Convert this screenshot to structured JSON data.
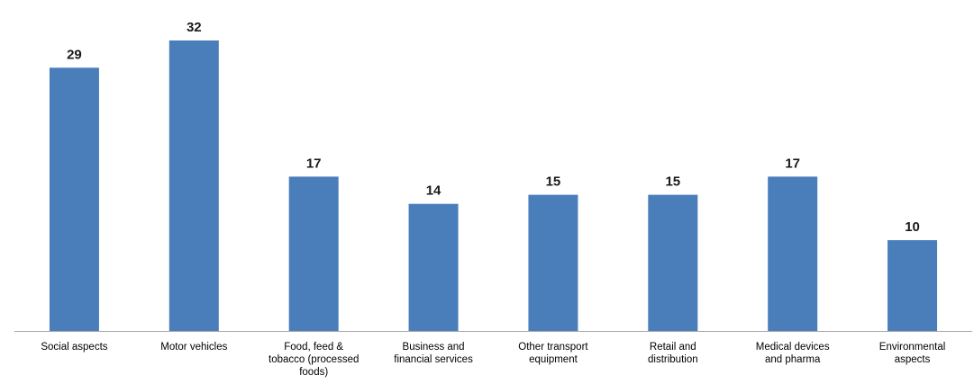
{
  "chart_data": {
    "type": "bar",
    "title": "",
    "xlabel": "",
    "ylabel": "",
    "categories": [
      [
        "Social aspects"
      ],
      [
        "Motor vehicles"
      ],
      [
        "Food, feed &",
        "tobacco (processed",
        "foods)"
      ],
      [
        "Business and",
        "financial services"
      ],
      [
        "Other transport",
        "equipment"
      ],
      [
        "Retail and",
        "distribution"
      ],
      [
        "Medical devices",
        "and pharma"
      ],
      [
        "Environmental",
        "aspects"
      ]
    ],
    "values": [
      29,
      32,
      17,
      14,
      15,
      15,
      17,
      10
    ],
    "ylim": [
      0,
      32
    ],
    "grid": false,
    "legend": "none",
    "data_labels": true,
    "colors": {
      "bar": "#4a7ebb",
      "axis": "#a6a6a6"
    }
  }
}
